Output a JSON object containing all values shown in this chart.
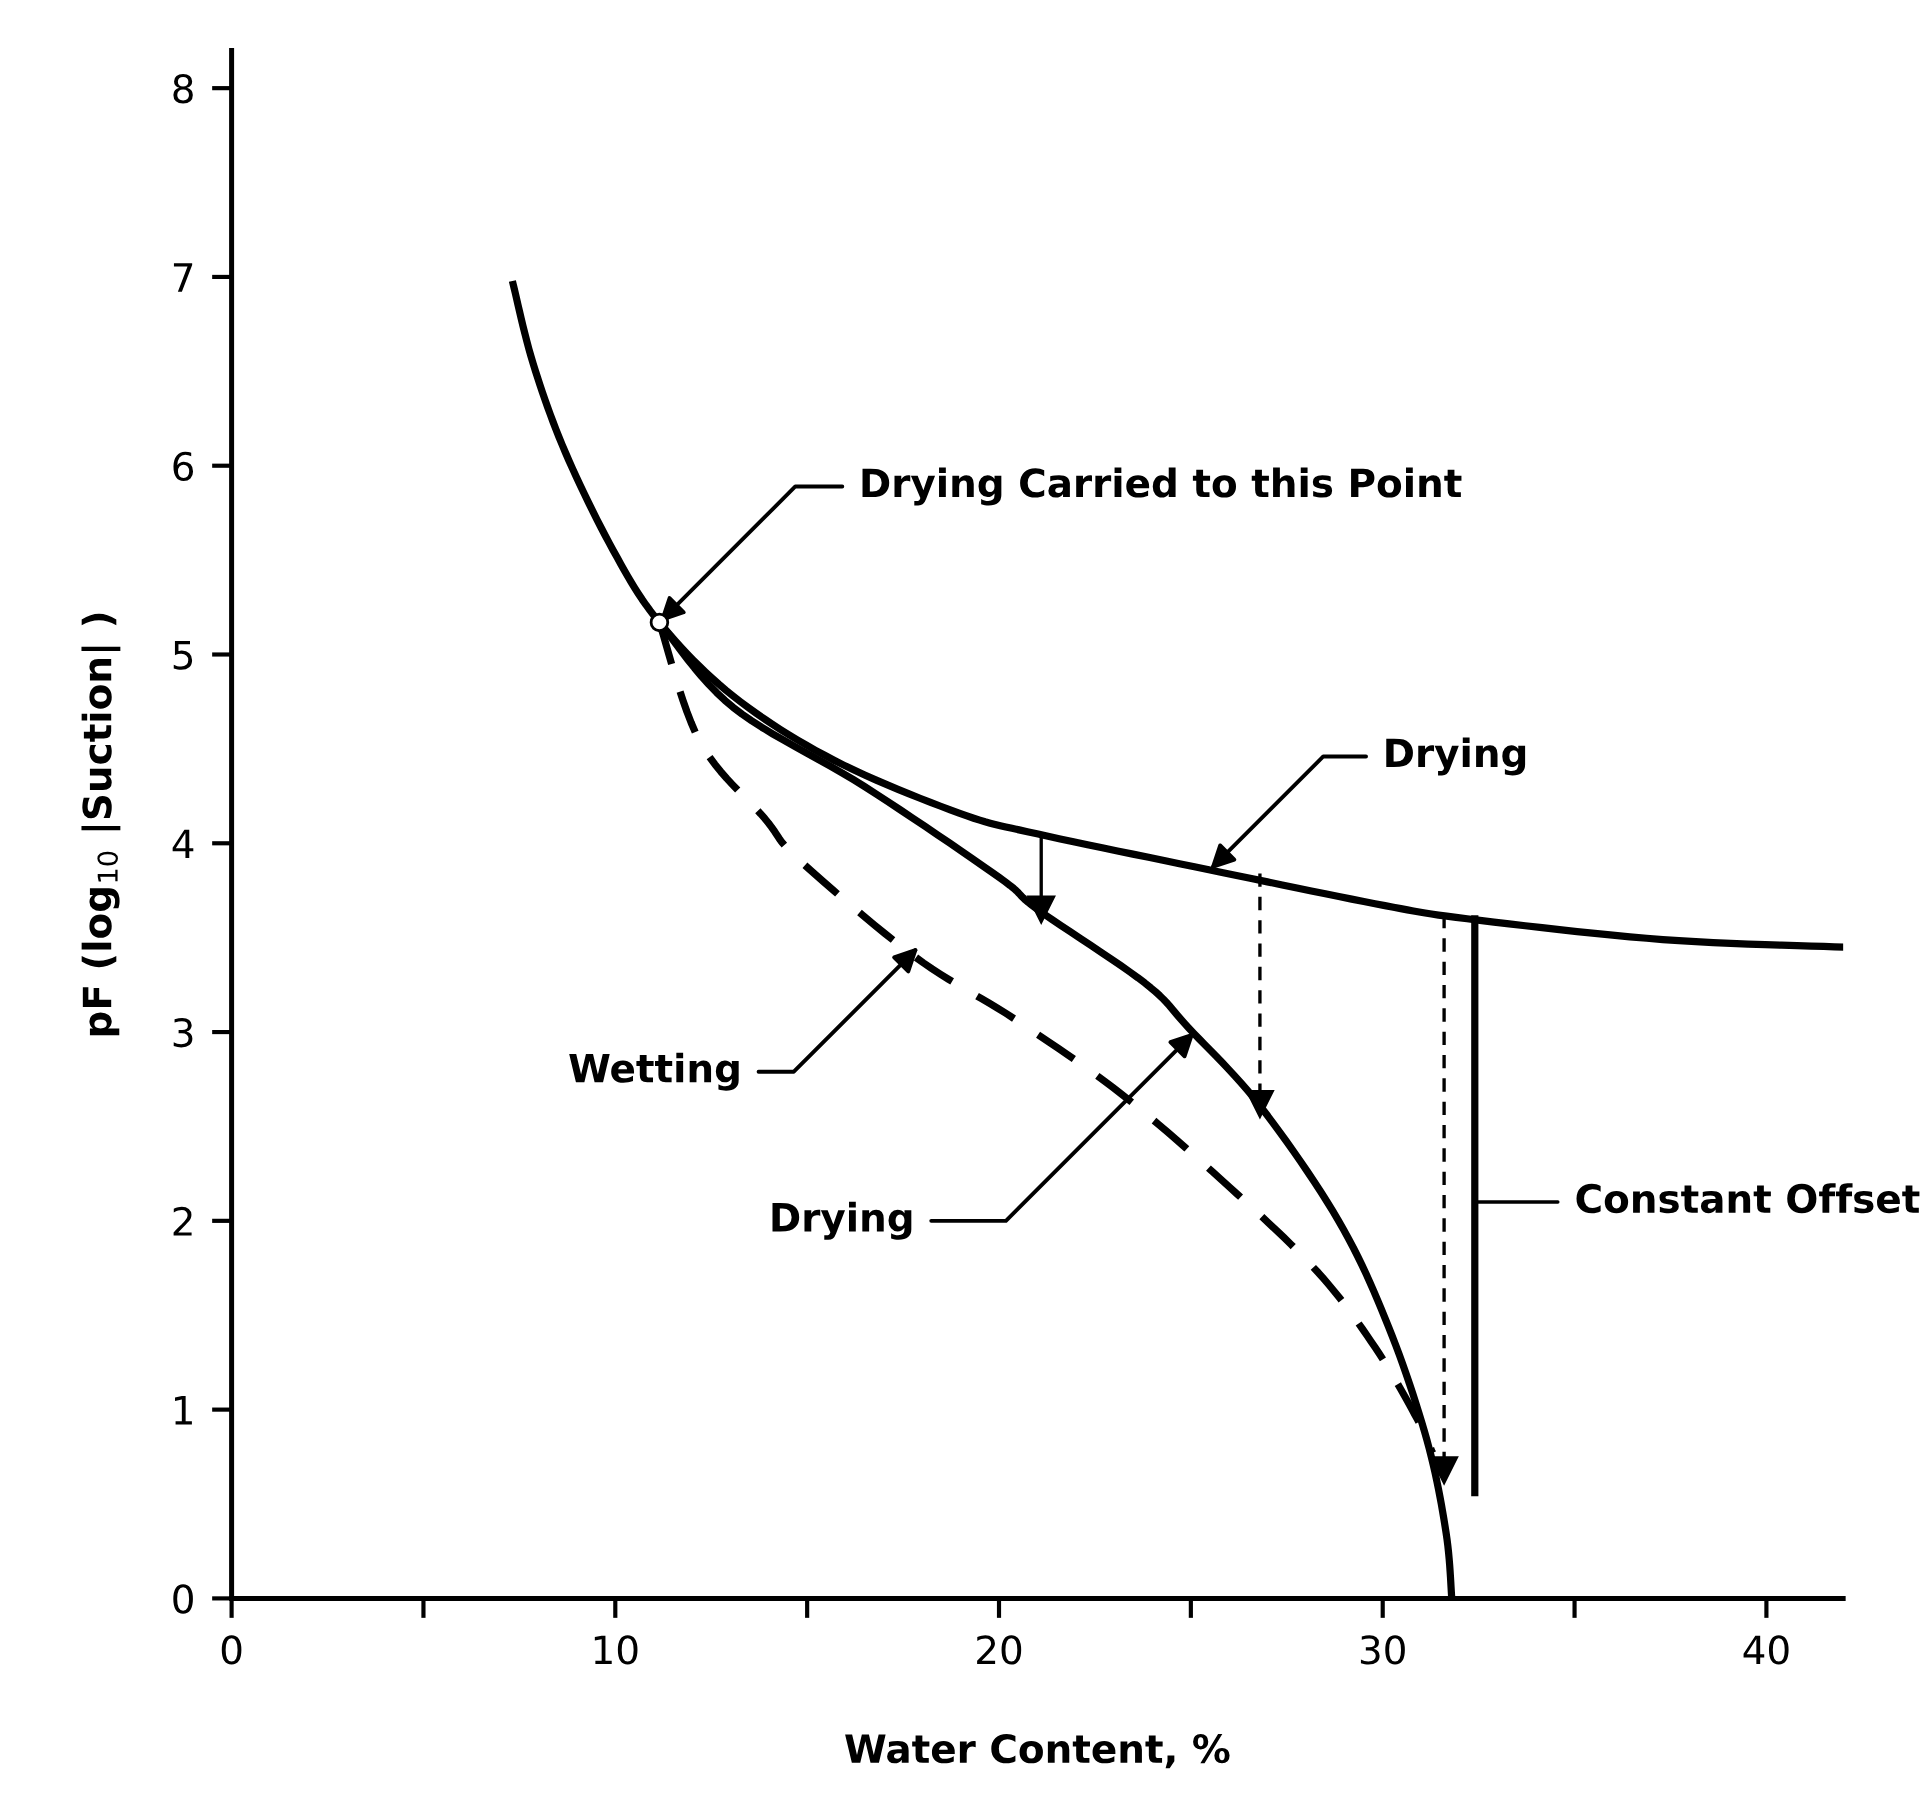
{
  "chart_data": {
    "type": "line",
    "xlabel": "Water Content, %",
    "ylabel": "pF (log$_{10}$ |Suction| )",
    "xlim": [
      0,
      42
    ],
    "ylim": [
      0,
      8.2
    ],
    "xticks": [
      0,
      {
        "value": 5,
        "label": null
      },
      10,
      {
        "value": 15,
        "label": null
      },
      20,
      {
        "value": 25,
        "label": null
      },
      30,
      {
        "value": 35,
        "label": null
      },
      40
    ],
    "yticks": [
      0,
      1,
      2,
      3,
      4,
      5,
      6,
      7,
      8
    ],
    "grid": false,
    "legend": false,
    "series": [
      {
        "color": "#000000",
        "line_style": "solid",
        "marker": "none",
        "x": [
          7.34,
          7.86,
          8.7,
          9.95,
          11.15,
          13.07,
          15.7,
          18.96,
          20.99,
          25.47,
          29.8,
          32.2,
          37.3,
          42.0
        ],
        "values": [
          6.96,
          6.54,
          6.07,
          5.55,
          5.17,
          4.78,
          4.44,
          4.16,
          4.05,
          3.86,
          3.68,
          3.6,
          3.49,
          3.45
        ]
      },
      {
        "color": "#000000",
        "line_style": "solid",
        "marker": "none",
        "x": [
          11.15,
          13.07,
          16.5,
          20.0,
          21.0,
          23.8,
          24.95,
          26.8,
          28.85,
          30.15,
          31.15,
          31.65,
          31.8
        ],
        "values": [
          5.17,
          4.72,
          4.3,
          3.82,
          3.65,
          3.26,
          3.02,
          2.61,
          2.0,
          1.44,
          0.84,
          0.35,
          0.0
        ]
      },
      {
        "color": "#000000",
        "line_style": "dashed",
        "marker": "none",
        "x": [
          11.15,
          12.2,
          13.9,
          14.8,
          17.8,
          20.4,
          23.2,
          26.0,
          28.3,
          29.8,
          30.9,
          31.3
        ],
        "values": [
          5.17,
          4.54,
          4.13,
          3.91,
          3.4,
          3.07,
          2.67,
          2.18,
          1.73,
          1.33,
          0.95,
          0.77
        ]
      },
      {
        "color": "#000000",
        "line_style": "solid",
        "marker": "triangle",
        "x": [
          21.1,
          21.1
        ],
        "values": [
          4.04,
          3.65
        ]
      },
      {
        "color": "#000000",
        "line_style": "dashed",
        "marker": "triangle",
        "x": [
          26.8,
          26.8
        ],
        "values": [
          3.84,
          2.62
        ]
      },
      {
        "color": "#000000",
        "line_style": "dashed",
        "marker": "triangle",
        "x": [
          31.6,
          31.6
        ],
        "values": [
          3.62,
          0.68
        ]
      },
      {
        "color": "#000000",
        "line_style": "solid",
        "marker": "none",
        "x": [
          32.4,
          32.4
        ],
        "values": [
          3.6,
          0.56
        ]
      }
    ],
    "annotations": [
      {
        "text": "Drying Carried to this Point",
        "x": 11.15,
        "y": 5.17
      },
      {
        "text": "Drying",
        "x": 25.5,
        "y": 3.86
      },
      {
        "text": "Wetting",
        "x": 17.9,
        "y": 3.45
      },
      {
        "text": "Drying",
        "x": 25.1,
        "y": 3.0
      },
      {
        "text": "Constant Offset",
        "x": 32.4,
        "y": 2.1
      }
    ]
  }
}
